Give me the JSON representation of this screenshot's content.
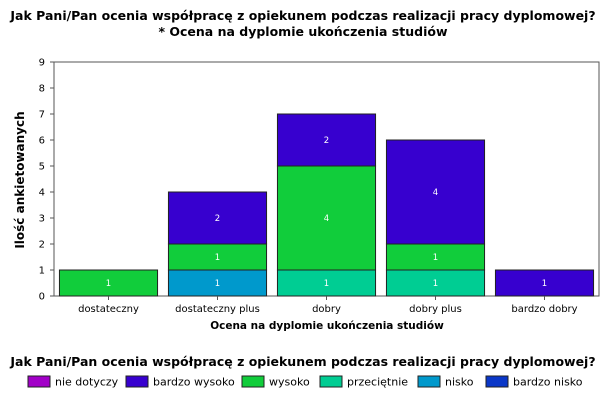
{
  "chart_data": {
    "type": "bar",
    "stacked": true,
    "title": "Jak Pani/Pan ocenia współpracę z opiekunem podczas realizacji pracy dyplomowej?",
    "subtitle": "* Ocena na dyplomie ukończenia studiów",
    "xlabel": "Ocena na dyplomie ukończenia studiów",
    "ylabel": "Ilość ankietowanych",
    "ylim": [
      0,
      9
    ],
    "yticks": [
      "0",
      "1",
      "2",
      "3",
      "4",
      "5",
      "6",
      "7",
      "8",
      "9"
    ],
    "grid": false,
    "categories": [
      "dostateczny",
      "dostateczny plus",
      "dobry",
      "dobry plus",
      "bardzo dobry"
    ],
    "legend_title": "Jak Pani/Pan ocenia współpracę z opiekunem podczas realizacji pracy dyplomowej?",
    "legend_position": "bottom",
    "series": [
      {
        "name": "nie dotyczy",
        "color": "#a200c8",
        "values": [
          0,
          0,
          0,
          0,
          0
        ]
      },
      {
        "name": "bardzo wysoko",
        "color": "#3700cf",
        "values": [
          0,
          2,
          2,
          4,
          1
        ]
      },
      {
        "name": "wysoko",
        "color": "#11cd3b",
        "values": [
          1,
          1,
          4,
          1,
          0
        ]
      },
      {
        "name": "przeciętnie",
        "color": "#00cd93",
        "values": [
          0,
          0,
          1,
          1,
          0
        ]
      },
      {
        "name": "nisko",
        "color": "#0099cc",
        "values": [
          0,
          1,
          0,
          0,
          0
        ]
      },
      {
        "name": "bardzo nisko",
        "color": "#0a37c8",
        "values": [
          0,
          0,
          0,
          0,
          0
        ]
      }
    ],
    "stack_order_bottom_to_top": [
      "nisko",
      "przeciętnie",
      "wysoko",
      "bardzo wysoko"
    ]
  }
}
